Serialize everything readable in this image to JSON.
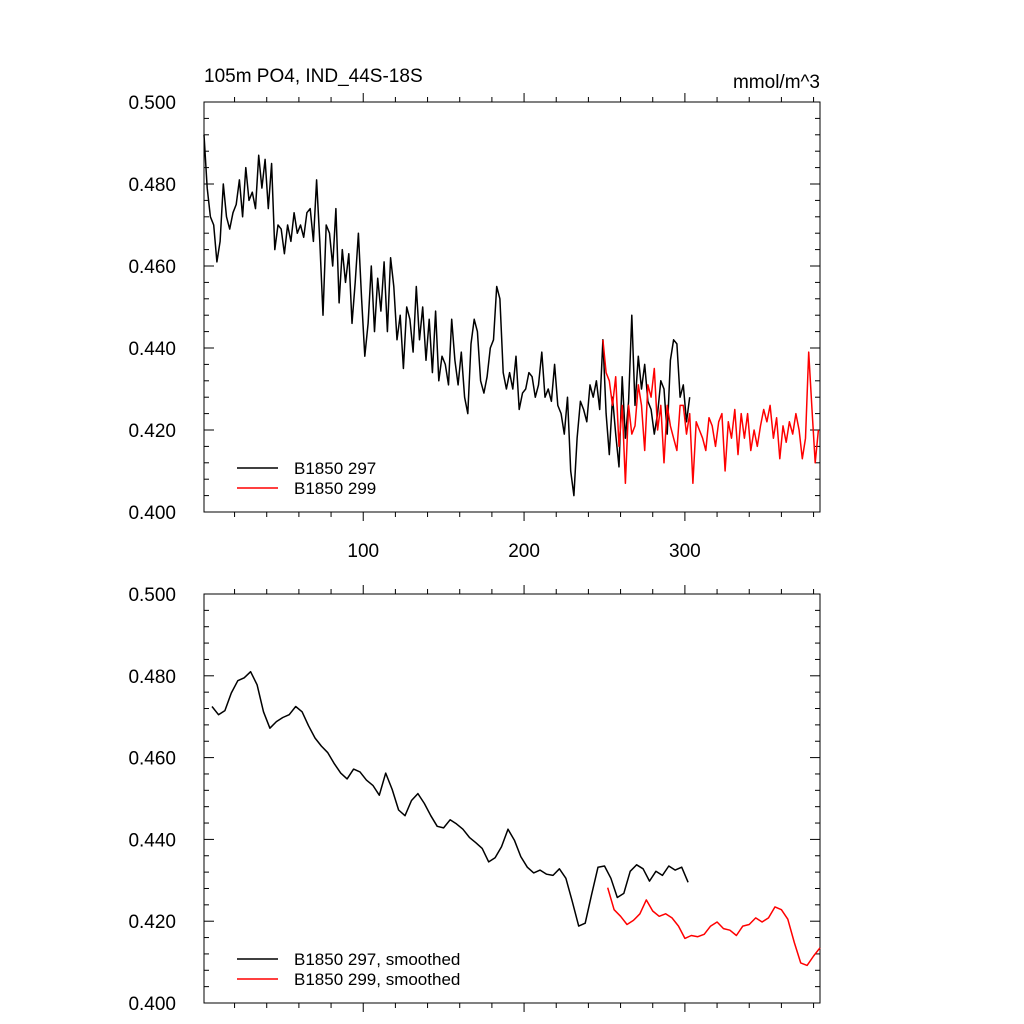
{
  "chart_data": [
    {
      "type": "line",
      "title": "105m PO4, IND_44S-18S",
      "units": "mmol/m^3",
      "xlim": [
        1,
        384
      ],
      "ylim": [
        0.4,
        0.5
      ],
      "yticks": [
        0.4,
        0.42,
        0.44,
        0.46,
        0.48,
        0.5
      ],
      "ytick_labels": [
        "0.400",
        "0.420",
        "0.440",
        "0.460",
        "0.480",
        "0.500"
      ],
      "xticks": [
        100,
        200,
        300
      ],
      "xtick_labels": [
        "100",
        "200",
        "300"
      ],
      "legend_position": "bottom-left",
      "series": [
        {
          "name": "B1850 297",
          "color": "#000000",
          "x": [
            1,
            3,
            5,
            7,
            9,
            11,
            13,
            15,
            17,
            19,
            21,
            23,
            25,
            27,
            29,
            31,
            33,
            35,
            37,
            39,
            41,
            43,
            45,
            47,
            49,
            51,
            53,
            55,
            57,
            59,
            61,
            63,
            65,
            67,
            69,
            71,
            73,
            75,
            77,
            79,
            81,
            83,
            85,
            87,
            89,
            91,
            93,
            95,
            97,
            99,
            101,
            103,
            105,
            107,
            109,
            111,
            113,
            115,
            117,
            119,
            121,
            123,
            125,
            127,
            129,
            131,
            133,
            135,
            137,
            139,
            141,
            143,
            145,
            147,
            149,
            151,
            153,
            155,
            157,
            159,
            161,
            163,
            165,
            167,
            169,
            171,
            173,
            175,
            177,
            179,
            181,
            183,
            185,
            187,
            189,
            191,
            193,
            195,
            197,
            199,
            201,
            203,
            205,
            207,
            209,
            211,
            213,
            215,
            217,
            219,
            221,
            223,
            225,
            227,
            229,
            231,
            233,
            235,
            237,
            239,
            241,
            243,
            245,
            247,
            249,
            251,
            253,
            255,
            257,
            259,
            261,
            263,
            265,
            267,
            269,
            271,
            273,
            275,
            277,
            279,
            281,
            283,
            285,
            287,
            289,
            291,
            293,
            295,
            297,
            299,
            301,
            303
          ],
          "y": [
            0.492,
            0.479,
            0.472,
            0.47,
            0.461,
            0.466,
            0.48,
            0.472,
            0.469,
            0.473,
            0.475,
            0.481,
            0.472,
            0.484,
            0.476,
            0.478,
            0.474,
            0.487,
            0.479,
            0.486,
            0.474,
            0.485,
            0.464,
            0.47,
            0.469,
            0.463,
            0.47,
            0.466,
            0.473,
            0.468,
            0.47,
            0.467,
            0.473,
            0.474,
            0.466,
            0.481,
            0.466,
            0.448,
            0.47,
            0.468,
            0.46,
            0.474,
            0.451,
            0.464,
            0.456,
            0.463,
            0.446,
            0.456,
            0.468,
            0.452,
            0.438,
            0.446,
            0.46,
            0.444,
            0.457,
            0.449,
            0.461,
            0.444,
            0.462,
            0.455,
            0.442,
            0.448,
            0.435,
            0.45,
            0.447,
            0.439,
            0.455,
            0.442,
            0.45,
            0.437,
            0.447,
            0.434,
            0.449,
            0.432,
            0.438,
            0.436,
            0.431,
            0.447,
            0.437,
            0.431,
            0.439,
            0.428,
            0.424,
            0.441,
            0.447,
            0.444,
            0.432,
            0.429,
            0.433,
            0.44,
            0.442,
            0.455,
            0.452,
            0.434,
            0.43,
            0.434,
            0.43,
            0.438,
            0.425,
            0.429,
            0.43,
            0.434,
            0.433,
            0.428,
            0.431,
            0.439,
            0.428,
            0.43,
            0.427,
            0.436,
            0.426,
            0.424,
            0.419,
            0.428,
            0.41,
            0.404,
            0.418,
            0.427,
            0.425,
            0.422,
            0.431,
            0.428,
            0.432,
            0.425,
            0.442,
            0.424,
            0.414,
            0.428,
            0.419,
            0.411,
            0.433,
            0.418,
            0.427,
            0.448,
            0.426,
            0.438,
            0.43,
            0.436,
            0.427,
            0.425,
            0.419,
            0.424,
            0.432,
            0.43,
            0.419,
            0.437,
            0.442,
            0.441,
            0.428,
            0.431,
            0.422,
            0.428
          ]
        },
        {
          "name": "B1850 299",
          "color": "#ff0000",
          "x": [
            249,
            251,
            253,
            255,
            257,
            259,
            261,
            263,
            265,
            267,
            269,
            271,
            273,
            275,
            277,
            279,
            281,
            283,
            285,
            287,
            289,
            291,
            293,
            295,
            297,
            299,
            301,
            303,
            305,
            307,
            309,
            311,
            313,
            315,
            317,
            319,
            321,
            323,
            325,
            327,
            329,
            331,
            333,
            335,
            337,
            339,
            341,
            343,
            345,
            347,
            349,
            351,
            353,
            355,
            357,
            359,
            361,
            363,
            365,
            367,
            369,
            371,
            373,
            375,
            377,
            379,
            381,
            383
          ],
          "y": [
            0.442,
            0.434,
            0.432,
            0.426,
            0.433,
            0.416,
            0.426,
            0.407,
            0.426,
            0.419,
            0.421,
            0.431,
            0.426,
            0.415,
            0.431,
            0.428,
            0.435,
            0.42,
            0.426,
            0.412,
            0.426,
            0.421,
            0.418,
            0.415,
            0.426,
            0.426,
            0.419,
            0.424,
            0.407,
            0.422,
            0.42,
            0.418,
            0.415,
            0.423,
            0.421,
            0.416,
            0.422,
            0.424,
            0.41,
            0.422,
            0.418,
            0.425,
            0.414,
            0.424,
            0.418,
            0.424,
            0.415,
            0.42,
            0.416,
            0.421,
            0.425,
            0.422,
            0.426,
            0.418,
            0.423,
            0.413,
            0.421,
            0.417,
            0.422,
            0.419,
            0.424,
            0.42,
            0.413,
            0.418,
            0.439,
            0.425,
            0.412,
            0.42
          ]
        }
      ]
    },
    {
      "type": "line",
      "title": "",
      "xlim": [
        1,
        384
      ],
      "ylim": [
        0.4,
        0.5
      ],
      "yticks": [
        0.4,
        0.42,
        0.44,
        0.46,
        0.48,
        0.5
      ],
      "ytick_labels": [
        "0.400",
        "0.420",
        "0.440",
        "0.460",
        "0.480",
        "0.500"
      ],
      "xticks": [
        100,
        200,
        300
      ],
      "xtick_labels": [],
      "legend_position": "bottom-left",
      "series": [
        {
          "name": "B1850 297, smoothed",
          "color": "#000000",
          "x": [
            6,
            10,
            14,
            18,
            22,
            26,
            30,
            34,
            38,
            42,
            46,
            50,
            54,
            58,
            62,
            66,
            70,
            74,
            78,
            82,
            86,
            90,
            94,
            98,
            102,
            106,
            110,
            114,
            118,
            122,
            126,
            130,
            134,
            138,
            142,
            146,
            150,
            154,
            158,
            162,
            166,
            170,
            174,
            178,
            182,
            186,
            190,
            194,
            198,
            202,
            206,
            210,
            214,
            218,
            222,
            226,
            230,
            234,
            238,
            242,
            246,
            250,
            254,
            258,
            262,
            266,
            270,
            274,
            278,
            282,
            286,
            290,
            294,
            298,
            302
          ],
          "y": [
            0.4725,
            0.4705,
            0.4715,
            0.4758,
            0.4788,
            0.4795,
            0.481,
            0.4778,
            0.4712,
            0.4672,
            0.4688,
            0.4698,
            0.4705,
            0.4725,
            0.4712,
            0.4678,
            0.4648,
            0.4628,
            0.4612,
            0.4585,
            0.4562,
            0.4548,
            0.4572,
            0.4565,
            0.4545,
            0.4532,
            0.4508,
            0.4562,
            0.4522,
            0.4472,
            0.4458,
            0.4495,
            0.4512,
            0.4488,
            0.4458,
            0.4432,
            0.4428,
            0.4448,
            0.4438,
            0.4425,
            0.4405,
            0.4392,
            0.4378,
            0.4345,
            0.4355,
            0.4382,
            0.4425,
            0.4398,
            0.4358,
            0.4332,
            0.4318,
            0.4325,
            0.4315,
            0.4312,
            0.4328,
            0.4305,
            0.4248,
            0.4188,
            0.4195,
            0.4265,
            0.4332,
            0.4335,
            0.4305,
            0.4258,
            0.4268,
            0.4322,
            0.4338,
            0.4328,
            0.4298,
            0.4322,
            0.4312,
            0.4335,
            0.4325,
            0.4332,
            0.4295
          ]
        },
        {
          "name": "B1850 299, smoothed",
          "color": "#ff0000",
          "x": [
            252,
            256,
            260,
            264,
            268,
            272,
            276,
            280,
            284,
            288,
            292,
            296,
            300,
            304,
            308,
            312,
            316,
            320,
            324,
            328,
            332,
            336,
            340,
            344,
            348,
            352,
            356,
            360,
            364,
            368,
            372,
            376,
            380,
            384
          ],
          "y": [
            0.4282,
            0.4228,
            0.4212,
            0.4192,
            0.4202,
            0.4218,
            0.4252,
            0.4225,
            0.4212,
            0.4218,
            0.4208,
            0.4188,
            0.4158,
            0.4165,
            0.4162,
            0.4168,
            0.4188,
            0.4198,
            0.4182,
            0.4178,
            0.4165,
            0.4188,
            0.4192,
            0.4208,
            0.4198,
            0.4208,
            0.4235,
            0.4228,
            0.4205,
            0.4148,
            0.4098,
            0.4092,
            0.4115,
            0.4135
          ]
        }
      ]
    }
  ]
}
